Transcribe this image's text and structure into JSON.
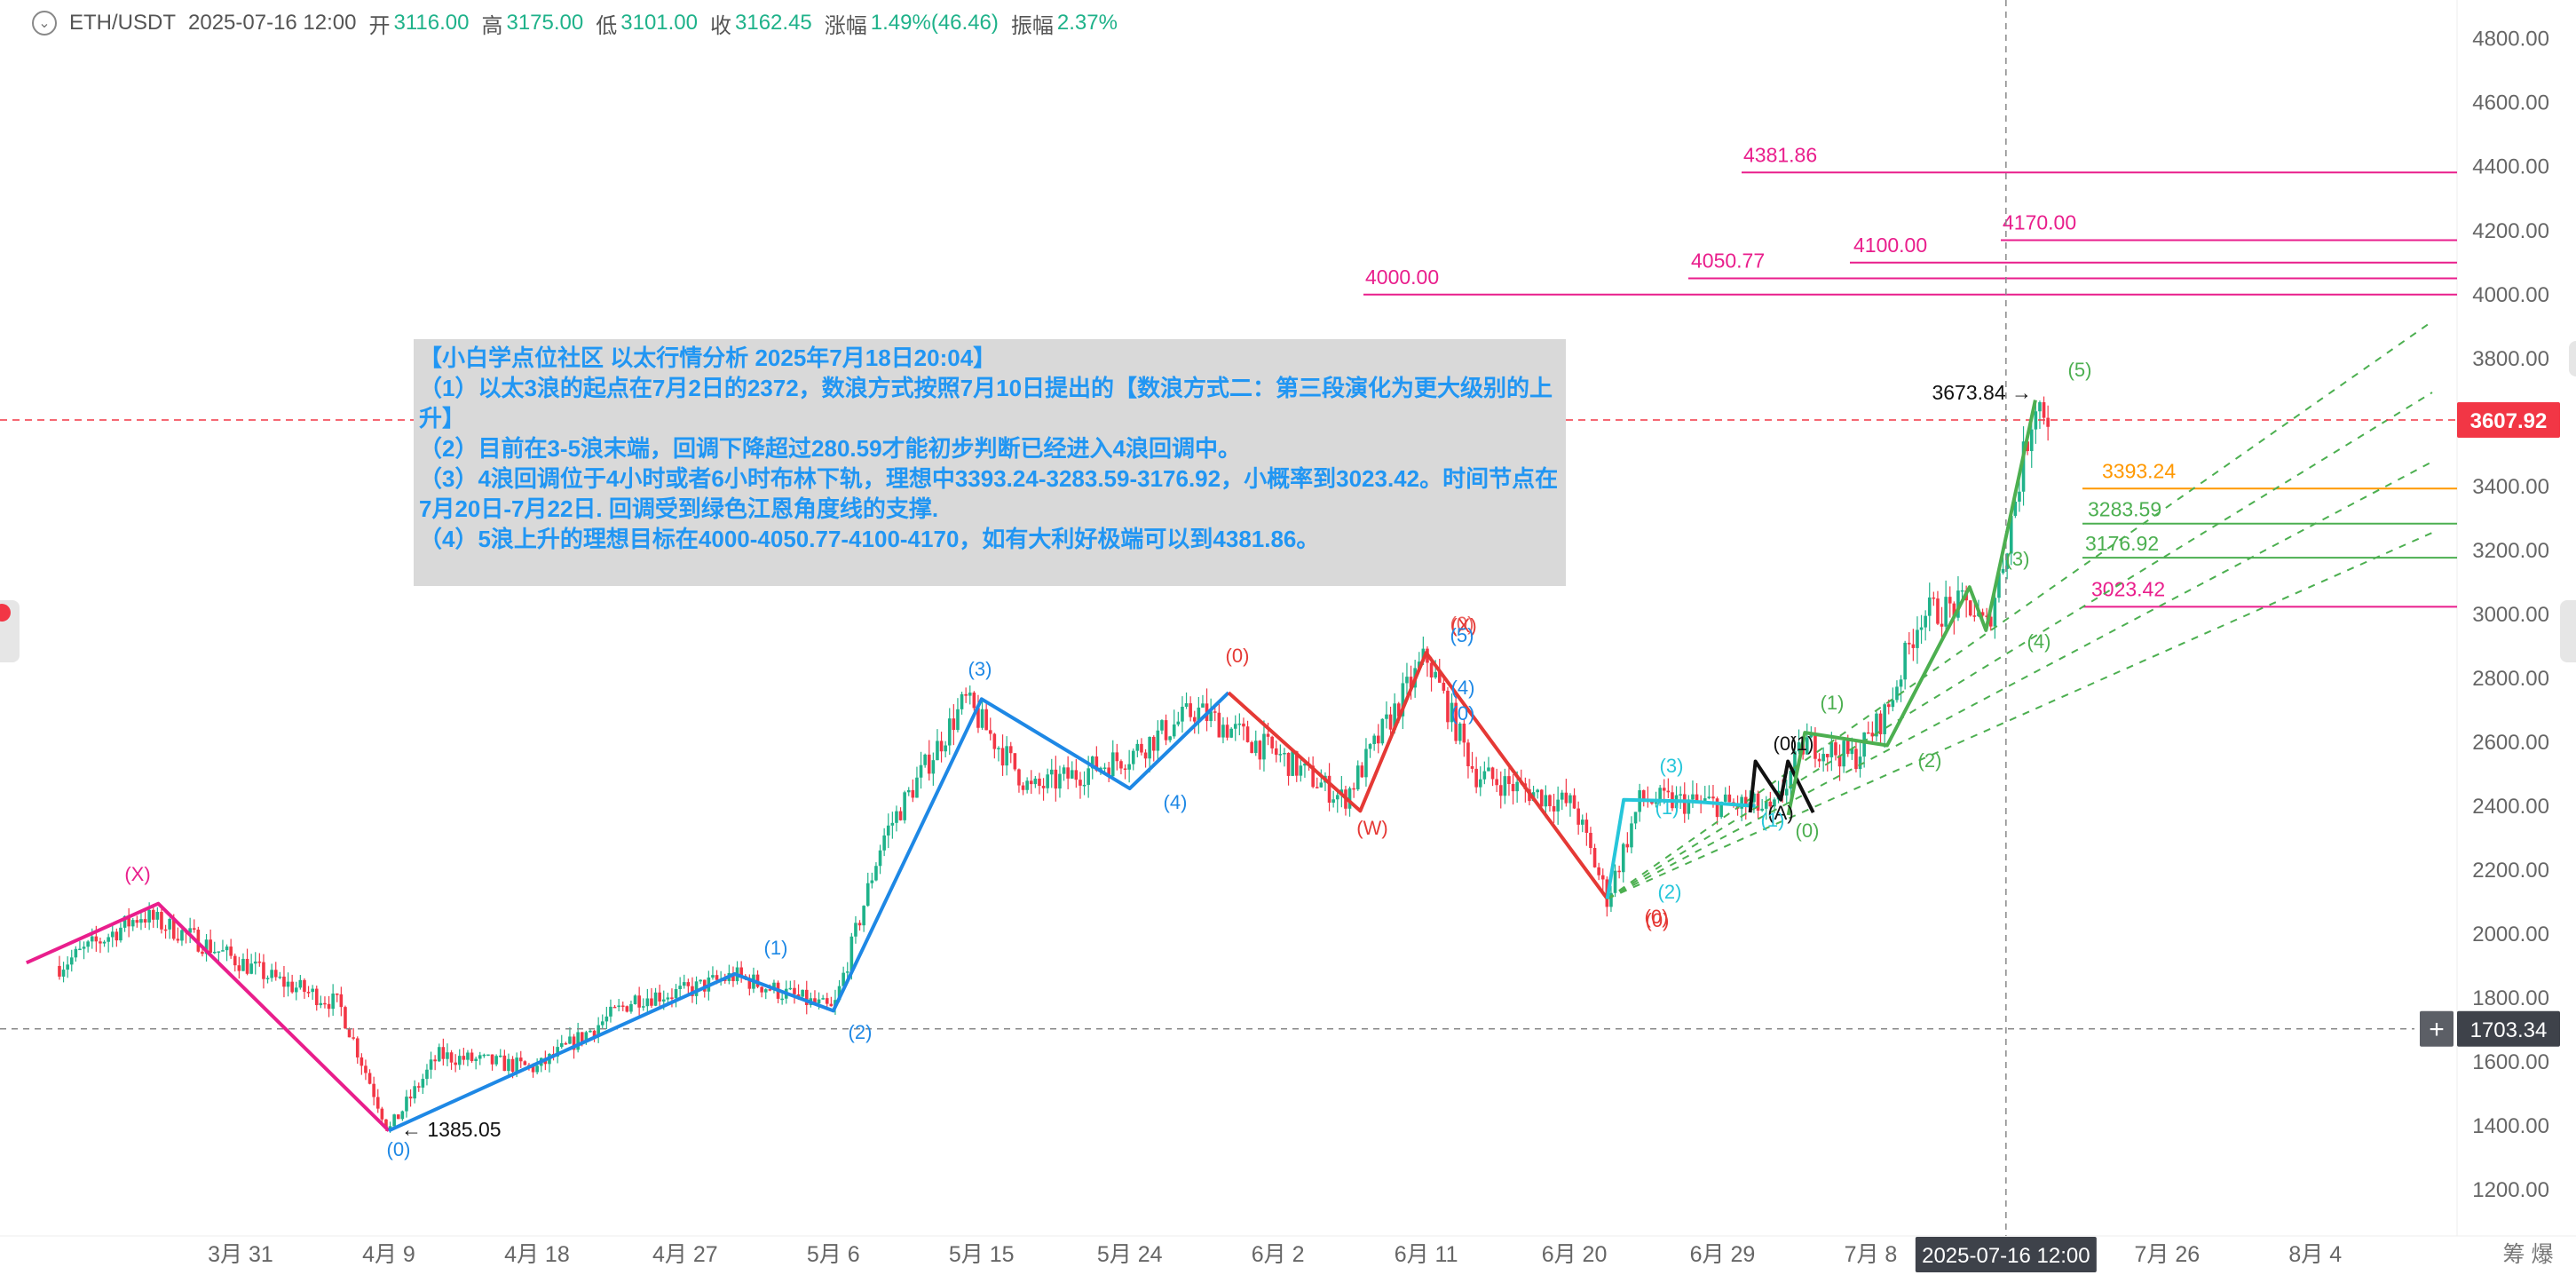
{
  "header": {
    "symbol": "ETH/USDT",
    "datetime": "2025-07-16 12:00",
    "open_label": "开",
    "open_value": "3116.00",
    "high_label": "高",
    "high_value": "3175.00",
    "low_label": "低",
    "low_value": "3101.00",
    "close_label": "收",
    "close_value": "3162.45",
    "change_label": "涨幅",
    "change_value": "1.49%(46.46)",
    "amplitude_label": "振幅",
    "amplitude_value": "2.37%"
  },
  "note": {
    "lines": [
      "【小白学点位社区 以太行情分析 2025年7月18日20:04】",
      "（1）以太3浪的起点在7月2日的2372，数浪方式按照7月10日提出的【数浪方式二：第三段演化为更大级别的上升】",
      "（2）目前在3-5浪末端，回调下降超过280.59才能初步判断已经进入4浪回调中。",
      "（3）4浪回调位于4小时或者6小时布林下轨，理想中3393.24-3283.59-3176.92，小概率到3023.42。时间节点在7月20日-7月22日. 回调受到绿色江恩角度线的支撑.",
      "（4）5浪上升的理想目标在4000-4050.77-4100-4170，如有大利好极端可以到4381.86。"
    ]
  },
  "price_axis": {
    "ticks": [
      "4800.00",
      "4600.00",
      "4400.00",
      "4200.00",
      "4000.00",
      "3800.00",
      "3600.00",
      "3400.00",
      "3200.00",
      "3000.00",
      "2800.00",
      "2600.00",
      "2400.00",
      "2200.00",
      "2000.00",
      "1800.00",
      "1600.00",
      "1400.00",
      "1200.00"
    ],
    "current_price_tag": "3607.92",
    "crosshair_price_tag": "1703.34",
    "plus_label": "+"
  },
  "time_axis": {
    "ticks": [
      "3月 31",
      "4月 9",
      "4月 18",
      "4月 27",
      "5月 6",
      "5月 15",
      "5月 24",
      "6月 2",
      "6月 11",
      "6月 20",
      "6月 29",
      "7月 8",
      "7月 26",
      "8月 4"
    ],
    "crosshair_time_tag": "2025-07-16 12:00",
    "corner_label": "筹 爆"
  },
  "chart_data": {
    "type": "candlestick",
    "symbol": "ETH/USDT",
    "y_range": [
      1150,
      4900
    ],
    "y_scale": "linear",
    "grid": false,
    "x_categories": [
      "3月 31",
      "4月 9",
      "4月 18",
      "4月 27",
      "5月 6",
      "5月 15",
      "5月 24",
      "6月 2",
      "6月 11",
      "6月 20",
      "6月 29",
      "7月 8",
      "7月 26",
      "8月 4"
    ],
    "price_path": [
      {
        "date": "03-20",
        "price": 1900
      },
      {
        "date": "03-25",
        "price": 2060
      },
      {
        "date": "03-28",
        "price": 1990
      },
      {
        "date": "04-02",
        "price": 1860
      },
      {
        "date": "04-06",
        "price": 1780
      },
      {
        "date": "04-09",
        "price": 1385.05
      },
      {
        "date": "04-12",
        "price": 1620
      },
      {
        "date": "04-18",
        "price": 1580
      },
      {
        "date": "04-24",
        "price": 1800
      },
      {
        "date": "04-27",
        "price": 1820
      },
      {
        "date": "04-30",
        "price": 1870
      },
      {
        "date": "05-06",
        "price": 1760
      },
      {
        "date": "05-09",
        "price": 2300
      },
      {
        "date": "05-14",
        "price": 2730
      },
      {
        "date": "05-18",
        "price": 2450
      },
      {
        "date": "05-24",
        "price": 2560
      },
      {
        "date": "05-28",
        "price": 2700
      },
      {
        "date": "06-02",
        "price": 2560
      },
      {
        "date": "06-06",
        "price": 2420
      },
      {
        "date": "06-11",
        "price": 2870
      },
      {
        "date": "06-14",
        "price": 2500
      },
      {
        "date": "06-20",
        "price": 2400
      },
      {
        "date": "06-22",
        "price": 2110
      },
      {
        "date": "06-24",
        "price": 2420
      },
      {
        "date": "07-01",
        "price": 2400
      },
      {
        "date": "07-02",
        "price": 2372
      },
      {
        "date": "07-04",
        "price": 2600
      },
      {
        "date": "07-07",
        "price": 2550
      },
      {
        "date": "07-09",
        "price": 2700
      },
      {
        "date": "07-11",
        "price": 3000
      },
      {
        "date": "07-14",
        "price": 3030
      },
      {
        "date": "07-15",
        "price": 2950
      },
      {
        "date": "07-16",
        "price": 3160
      },
      {
        "date": "07-18",
        "price": 3673.84
      },
      {
        "date": "07-19",
        "price": 3607.92
      }
    ],
    "high_marker": {
      "label": "3673.84",
      "value": 3673.84
    },
    "low_marker": {
      "label": "1385.05",
      "value": 1385.05
    },
    "horizontal_levels": [
      {
        "label": "4381.86",
        "value": 4381.86,
        "color": "#e91e8c"
      },
      {
        "label": "4170.00",
        "value": 4170.0,
        "color": "#e91e8c"
      },
      {
        "label": "4100.00",
        "value": 4100.0,
        "color": "#e91e8c"
      },
      {
        "label": "4050.77",
        "value": 4050.77,
        "color": "#e91e8c"
      },
      {
        "label": "4000.00",
        "value": 4000.0,
        "color": "#e91e8c"
      },
      {
        "label": "3393.24",
        "value": 3393.24,
        "color": "#ff9800"
      },
      {
        "label": "3283.59",
        "value": 3283.59,
        "color": "#4caf50"
      },
      {
        "label": "3176.92",
        "value": 3176.92,
        "color": "#4caf50"
      },
      {
        "label": "3023.42",
        "value": 3023.42,
        "color": "#e91e8c"
      }
    ],
    "current_price_line": {
      "value": 3607.92,
      "color": "#f23645"
    },
    "crosshair": {
      "time": "2025-07-16 12:00",
      "price": 1703.34
    },
    "wave_lines": [
      {
        "name": "pink",
        "color": "#e91e8c",
        "points": [
          {
            "date": "03-18",
            "price": 1910
          },
          {
            "date": "03-26",
            "price": 2095
          },
          {
            "date": "04-09",
            "price": 1385
          }
        ]
      },
      {
        "name": "blue",
        "color": "#1e88e5",
        "points": [
          {
            "date": "04-09",
            "price": 1385
          },
          {
            "date": "04-30",
            "price": 1875
          },
          {
            "date": "05-06",
            "price": 1760
          },
          {
            "date": "05-15",
            "price": 2735
          },
          {
            "date": "05-24",
            "price": 2455
          },
          {
            "date": "05-30",
            "price": 2755
          }
        ]
      },
      {
        "name": "red",
        "color": "#e53935",
        "points": [
          {
            "date": "05-30",
            "price": 2755
          },
          {
            "date": "06-07",
            "price": 2385
          },
          {
            "date": "06-11",
            "price": 2880
          },
          {
            "date": "06-22",
            "price": 2110
          }
        ]
      },
      {
        "name": "teal",
        "color": "#26c6da",
        "points": [
          {
            "date": "06-22",
            "price": 2110
          },
          {
            "date": "06-23",
            "price": 2420
          },
          {
            "date": "06-27",
            "price": 2415
          },
          {
            "date": "07-01",
            "price": 2400
          }
        ]
      },
      {
        "name": "black",
        "color": "#111111",
        "points": [
          {
            "date": "07-01",
            "price": 2380
          },
          {
            "date": "07-01",
            "price": 2540
          },
          {
            "date": "07-02",
            "price": 2420
          },
          {
            "date": "07-02",
            "price": 2540
          },
          {
            "date": "07-03",
            "price": 2380
          }
        ]
      },
      {
        "name": "green",
        "color": "#4caf50",
        "points": [
          {
            "date": "07-03",
            "price": 2372
          },
          {
            "date": "07-04",
            "price": 2630
          },
          {
            "date": "07-09",
            "price": 2590
          },
          {
            "date": "07-14",
            "price": 3085
          },
          {
            "date": "07-15",
            "price": 2950
          },
          {
            "date": "07-18",
            "price": 3670
          }
        ]
      }
    ],
    "gann_fan": {
      "color": "#4caf50",
      "style": "dashed",
      "origin": {
        "date": "06-22",
        "price": 2110
      }
    },
    "wave_labels": [
      {
        "text": "(X)",
        "color": "#e91e8c"
      },
      {
        "text": "(0)",
        "color": "#1e88e5"
      },
      {
        "text": "(1)",
        "color": "#1e88e5"
      },
      {
        "text": "(2)",
        "color": "#1e88e5"
      },
      {
        "text": "(3)",
        "color": "#1e88e5"
      },
      {
        "text": "(4)",
        "color": "#1e88e5"
      },
      {
        "text": "(0)",
        "color": "#e53935"
      },
      {
        "text": "(W)",
        "color": "#e53935"
      },
      {
        "text": "(X)",
        "color": "#e53935"
      },
      {
        "text": "(0)",
        "color": "#e53935"
      },
      {
        "text": "(1)",
        "color": "#26c6da"
      },
      {
        "text": "(2)",
        "color": "#26c6da"
      },
      {
        "text": "(3)",
        "color": "#26c6da"
      },
      {
        "text": "(A)",
        "color": "#111111"
      },
      {
        "text": "(0)",
        "color": "#4caf50"
      },
      {
        "text": "(1)",
        "color": "#4caf50"
      },
      {
        "text": "(2)",
        "color": "#4caf50"
      },
      {
        "text": "(3)",
        "color": "#4caf50"
      },
      {
        "text": "(4)",
        "color": "#4caf50"
      },
      {
        "text": "(5)",
        "color": "#4caf50"
      }
    ]
  },
  "colors": {
    "up": "#1fb28a",
    "down": "#f23645",
    "pink": "#e91e8c",
    "orange": "#ff9800",
    "green": "#4caf50",
    "blue": "#1e88e5",
    "red": "#e53935",
    "teal": "#26c6da"
  },
  "icons": {
    "collapse": "chevron-down-icon",
    "add": "plus-icon"
  }
}
